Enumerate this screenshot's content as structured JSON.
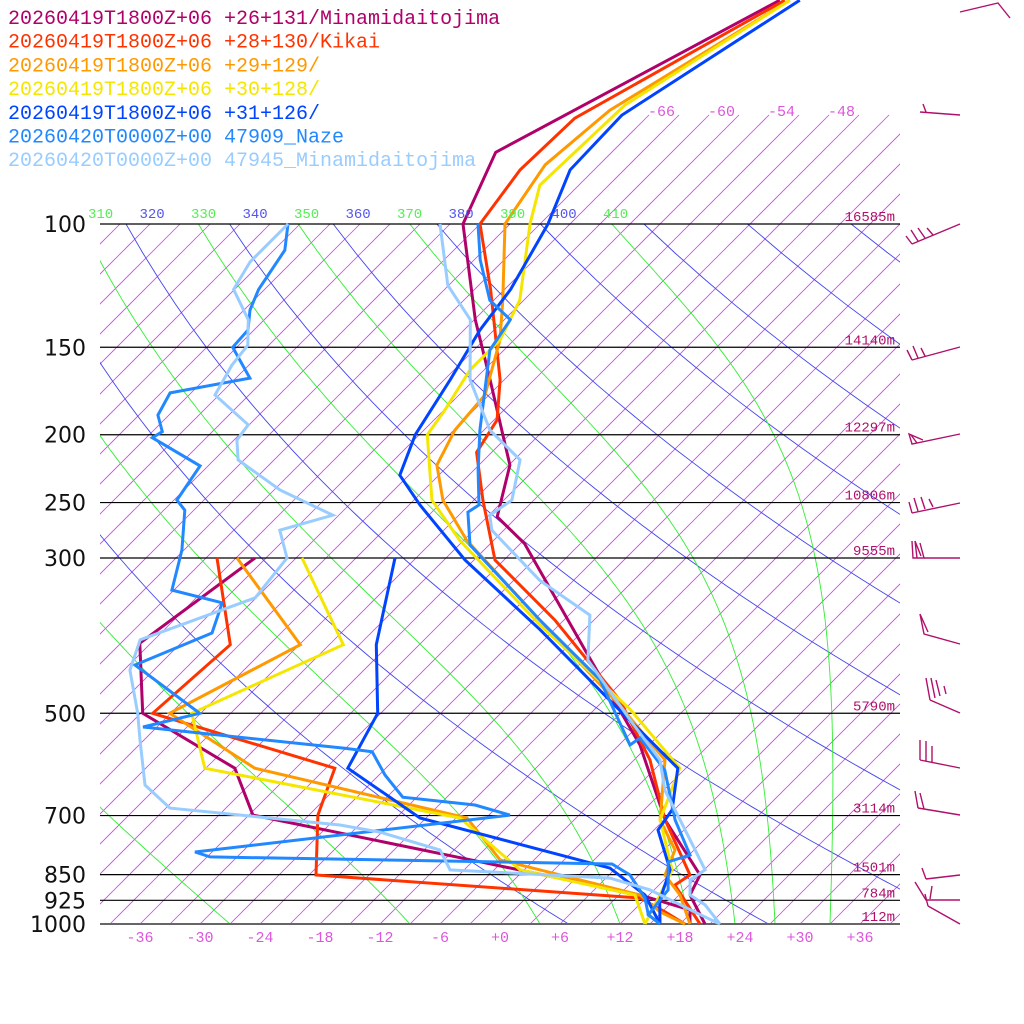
{
  "chart_data": {
    "type": "line",
    "subtype": "skew-T log-p sounding",
    "legend": [
      {
        "label": "20260419T1800Z+06 +26+131/Minamidaitojima",
        "color": "#b0006a"
      },
      {
        "label": "20260419T1800Z+06 +28+130/Kikai",
        "color": "#ff3300"
      },
      {
        "label": "20260419T1800Z+06 +29+129/",
        "color": "#ff9900"
      },
      {
        "label": "20260419T1800Z+06 +30+128/",
        "color": "#f5e600"
      },
      {
        "label": "20260419T1800Z+06 +31+126/",
        "color": "#0044ff"
      },
      {
        "label": "20260420T0000Z+00 47909_Naze",
        "color": "#2288ff"
      },
      {
        "label": "20260420T0000Z+00 47945_Minamidaitojima",
        "color": "#99ccff"
      }
    ],
    "legend_placement": "top-left",
    "xlabel": "Temperature (°C)",
    "ylabel": "Pressure (hPa)",
    "xlim": [
      -40,
      40
    ],
    "ylim": [
      1000,
      100
    ],
    "x_ticks": [
      "-36",
      "-30",
      "-24",
      "-18",
      "-12",
      "-6",
      "+0",
      "+6",
      "+12",
      "+18",
      "+24",
      "+30",
      "+36"
    ],
    "pressure_levels": [
      {
        "p": 100,
        "label": "100",
        "height": "16585m"
      },
      {
        "p": 150,
        "label": "150",
        "height": "14140m"
      },
      {
        "p": 200,
        "label": "200",
        "height": "12297m"
      },
      {
        "p": 250,
        "label": "250",
        "height": "10806m"
      },
      {
        "p": 300,
        "label": "300",
        "height": "9555m"
      },
      {
        "p": 500,
        "label": "500",
        "height": "5790m"
      },
      {
        "p": 700,
        "label": "700",
        "height": "3114m"
      },
      {
        "p": 850,
        "label": "850",
        "height": "1501m"
      },
      {
        "p": 925,
        "label": "925",
        "height": "784m"
      },
      {
        "p": 1000,
        "label": "1000",
        "height": "112m"
      }
    ],
    "theta_labels": [
      {
        "text": "310",
        "kind": "moist"
      },
      {
        "text": "320",
        "kind": "dry"
      },
      {
        "text": "330",
        "kind": "moist"
      },
      {
        "text": "340",
        "kind": "dry"
      },
      {
        "text": "350",
        "kind": "moist"
      },
      {
        "text": "360",
        "kind": "dry"
      },
      {
        "text": "370",
        "kind": "moist"
      },
      {
        "text": "380",
        "kind": "dry"
      },
      {
        "text": "390",
        "kind": "moist"
      },
      {
        "text": "400",
        "kind": "dry"
      },
      {
        "text": "410",
        "kind": "moist"
      }
    ],
    "isotherm_labels": [
      "-66",
      "-60",
      "-54",
      "-48"
    ],
    "series": [
      {
        "name": "20260419T1800Z+06 +26+131/Minamidaitojima",
        "color": "#b0006a",
        "temperature": [
          [
            47.9,
            -64.4
          ],
          [
            79,
            -77.6
          ],
          [
            100,
            -73.7
          ],
          [
            137,
            -62.9
          ],
          [
            167,
            -55.4
          ],
          [
            221,
            -44.9
          ],
          [
            262,
            -41
          ],
          [
            286,
            -35.6
          ],
          [
            406,
            -18.9
          ],
          [
            555,
            -3.9
          ],
          [
            710,
            6.1
          ],
          [
            851,
            15.1
          ],
          [
            909,
            16.1
          ],
          [
            1000,
            20.5
          ]
        ],
        "dewpoint": [
          [
            300,
            -61.1
          ],
          [
            397,
            -64.1
          ],
          [
            500,
            -56.8
          ],
          [
            599,
            -42.1
          ],
          [
            699,
            -35.6
          ],
          [
            815,
            -8.2
          ],
          [
            909,
            11.1
          ],
          [
            955,
            17.6
          ],
          [
            1000,
            19
          ]
        ]
      },
      {
        "name": "20260419T1800Z+06 +28+130/Kikai",
        "color": "#ff3300",
        "temperature": [
          [
            47.9,
            -63.9
          ],
          [
            70.6,
            -73.1
          ],
          [
            83.7,
            -73.4
          ],
          [
            100,
            -72
          ],
          [
            124,
            -64.4
          ],
          [
            167,
            -54.4
          ],
          [
            190.5,
            -50.7
          ],
          [
            212,
            -49.5
          ],
          [
            248,
            -44.1
          ],
          [
            302,
            -36.9
          ],
          [
            368,
            -24.9
          ],
          [
            479,
            -10.4
          ],
          [
            583,
            -1.4
          ],
          [
            710,
            6.1
          ],
          [
            851,
            14.1
          ],
          [
            880,
            13.6
          ],
          [
            1000,
            20
          ]
        ],
        "dewpoint": [
          [
            300,
            -64.9
          ],
          [
            399,
            -54.9
          ],
          [
            500,
            -55.8
          ],
          [
            599,
            -32.1
          ],
          [
            699,
            -29.1
          ],
          [
            851,
            -23.3
          ],
          [
            918,
            11.4
          ],
          [
            961,
            15.3
          ],
          [
            1000,
            18.5
          ]
        ]
      },
      {
        "name": "20260419T1800Z+06 +29+129/",
        "color": "#ff9900",
        "temperature": [
          [
            47.9,
            -63.4
          ],
          [
            68.8,
            -70.4
          ],
          [
            82.3,
            -71.4
          ],
          [
            100,
            -69.5
          ],
          [
            128.5,
            -62.1
          ],
          [
            146.5,
            -58.4
          ],
          [
            175.5,
            -54.4
          ],
          [
            197,
            -53.9
          ],
          [
            221,
            -52.2
          ],
          [
            248,
            -48.1
          ],
          [
            283,
            -41.7
          ],
          [
            368,
            -26.4
          ],
          [
            487,
            -9.9
          ],
          [
            583,
            0.1
          ],
          [
            710,
            5.6
          ],
          [
            784,
            10.1
          ],
          [
            851,
            11.6
          ],
          [
            909,
            15.1
          ],
          [
            1000,
            19
          ]
        ],
        "dewpoint": [
          [
            300,
            -62.9
          ],
          [
            399,
            -47.9
          ],
          [
            500,
            -54.1
          ],
          [
            599,
            -40.1
          ],
          [
            705.6,
            -13.9
          ],
          [
            810,
            -6.4
          ],
          [
            909,
            11.1
          ],
          [
            961,
            14.8
          ],
          [
            1000,
            18.5
          ]
        ]
      },
      {
        "name": "20260419T1800Z+06 +30+128/",
        "color": "#f5e600",
        "temperature": [
          [
            47.9,
            -63.4
          ],
          [
            67.6,
            -69.4
          ],
          [
            88,
            -69.9
          ],
          [
            100,
            -67
          ],
          [
            128.5,
            -60.4
          ],
          [
            146.5,
            -58.4
          ],
          [
            161.7,
            -58.4
          ],
          [
            184.5,
            -56.9
          ],
          [
            200,
            -56.2
          ],
          [
            248,
            -49.2
          ],
          [
            283,
            -42.4
          ],
          [
            374,
            -25.9
          ],
          [
            494,
            -8.4
          ],
          [
            599,
            2.4
          ],
          [
            710,
            5.6
          ],
          [
            837,
            11.8
          ],
          [
            909,
            13.1
          ],
          [
            1000,
            14.5
          ]
        ],
        "dewpoint": [
          [
            300,
            -56.4
          ],
          [
            399,
            -43.6
          ],
          [
            500,
            -51.9
          ],
          [
            599,
            -45.1
          ],
          [
            705.6,
            -14.6
          ],
          [
            837,
            -3.4
          ],
          [
            909,
            10.6
          ],
          [
            1000,
            14.5
          ]
        ]
      },
      {
        "name": "20260419T1800Z+06 +31+126/",
        "color": "#0044ff",
        "temperature": [
          [
            47.9,
            -62.4
          ],
          [
            69.9,
            -68.7
          ],
          [
            83.7,
            -68.4
          ],
          [
            100,
            -65.2
          ],
          [
            124,
            -62.4
          ],
          [
            141.7,
            -61.4
          ],
          [
            167,
            -59.4
          ],
          [
            200,
            -57.4
          ],
          [
            228.5,
            -54.9
          ],
          [
            252,
            -49.9
          ],
          [
            302,
            -39.9
          ],
          [
            380,
            -25.4
          ],
          [
            487,
            -10.4
          ],
          [
            599,
            2.2
          ],
          [
            687,
            5.8
          ],
          [
            734,
            6.4
          ],
          [
            837,
            11.6
          ],
          [
            925,
            13.6
          ],
          [
            1000,
            16
          ]
        ],
        "dewpoint": [
          [
            300,
            -47.1
          ],
          [
            399,
            -40.3
          ],
          [
            500,
            -33.3
          ],
          [
            599,
            -30.8
          ],
          [
            705.6,
            -18.6
          ],
          [
            832,
            5.4
          ],
          [
            909,
            11.6
          ],
          [
            1000,
            16
          ]
        ]
      },
      {
        "name": "20260420T0000Z+00 47909_Naze",
        "color": "#2288ff",
        "temperature": [
          [
            100,
            -72.2
          ],
          [
            112.5,
            -68.4
          ],
          [
            128.5,
            -63.4
          ],
          [
            137,
            -59.4
          ],
          [
            151.4,
            -58.4
          ],
          [
            197,
            -51.4
          ],
          [
            224.5,
            -47.6
          ],
          [
            252,
            -44
          ],
          [
            258,
            -44.4
          ],
          [
            287.5,
            -40.9
          ],
          [
            368,
            -26.4
          ],
          [
            448,
            -14.4
          ],
          [
            555,
            -4.9
          ],
          [
            542,
            -4.6
          ],
          [
            603,
            1.1
          ],
          [
            710,
            7.1
          ],
          [
            797,
            12.1
          ],
          [
            815,
            10.6
          ],
          [
            894,
            13.4
          ],
          [
            970,
            13.9
          ],
          [
            1000,
            16
          ]
        ],
        "dewpoint": [
          [
            100,
            -91.2
          ],
          [
            109,
            -88.9
          ],
          [
            124,
            -87.6
          ],
          [
            132.7,
            -86.4
          ],
          [
            141.7,
            -84.6
          ],
          [
            150,
            -84.4
          ],
          [
            166,
            -79.6
          ],
          [
            174.3,
            -86.1
          ],
          [
            187.5,
            -85.1
          ],
          [
            198,
            -83
          ],
          [
            202,
            -83.4
          ],
          [
            221.6,
            -75.8
          ],
          [
            248,
            -74.7
          ],
          [
            256.4,
            -72.9
          ],
          [
            292.3,
            -69.2
          ],
          [
            333.4,
            -66.2
          ],
          [
            347.7,
            -59.9
          ],
          [
            383.9,
            -57.9
          ],
          [
            426.6,
            -62.4
          ],
          [
            500,
            -51.1
          ],
          [
            523,
            -55.4
          ],
          [
            561,
            -33.1
          ],
          [
            567.6,
            -30
          ],
          [
            612.6,
            -26.4
          ],
          [
            659,
            -22.4
          ],
          [
            676,
            -14.4
          ],
          [
            699,
            -9.9
          ],
          [
            789,
            -37.7
          ],
          [
            802,
            -35.7
          ],
          [
            821,
            5.2
          ],
          [
            851,
            8.1
          ],
          [
            918,
            11.9
          ],
          [
            970,
            13.9
          ],
          [
            1000,
            16
          ]
        ]
      },
      {
        "name": "20260420T0000Z+00 47945_Minamidaitojima",
        "color": "#99ccff",
        "temperature": [
          [
            100,
            -76
          ],
          [
            122.3,
            -69.1
          ],
          [
            137,
            -63.4
          ],
          [
            167,
            -57.4
          ],
          [
            197,
            -50.4
          ],
          [
            217.3,
            -44.4
          ],
          [
            248,
            -41.2
          ],
          [
            260.6,
            -41.9
          ],
          [
            273.8,
            -40.2
          ],
          [
            322.8,
            -30.4
          ],
          [
            362,
            -21.9
          ],
          [
            419.8,
            -17.6
          ],
          [
            511,
            -7.4
          ],
          [
            583,
            -0.4
          ],
          [
            644,
            3.1
          ],
          [
            710,
            7.6
          ],
          [
            837,
            15.1
          ],
          [
            865,
            14.6
          ],
          [
            909,
            16.1
          ],
          [
            939,
            18.6
          ],
          [
            1000,
            22
          ]
        ],
        "dewpoint": [
          [
            100,
            -91.2
          ],
          [
            113.3,
            -91.2
          ],
          [
            124,
            -90.1
          ],
          [
            137,
            -85.6
          ],
          [
            149,
            -83.1
          ],
          [
            159,
            -82.7
          ],
          [
            175.5,
            -81.4
          ],
          [
            193.6,
            -75.1
          ],
          [
            203.6,
            -74.7
          ],
          [
            217.3,
            -72.6
          ],
          [
            239.9,
            -65.4
          ],
          [
            260.6,
            -57.6
          ],
          [
            273.8,
            -61.4
          ],
          [
            300,
            -57.9
          ],
          [
            342,
            -57.1
          ],
          [
            392.7,
            -64.4
          ],
          [
            433.8,
            -62.4
          ],
          [
            500,
            -57.3
          ],
          [
            546,
            -54.4
          ],
          [
            633,
            -49.4
          ],
          [
            683,
            -44.6
          ],
          [
            722,
            -25.9
          ],
          [
            739,
            -21.2
          ],
          [
            784,
            -13.4
          ],
          [
            837,
            -10.4
          ],
          [
            860,
            6.4
          ],
          [
            894,
            11.6
          ],
          [
            970,
            19.1
          ],
          [
            1000,
            22
          ]
        ]
      }
    ]
  }
}
